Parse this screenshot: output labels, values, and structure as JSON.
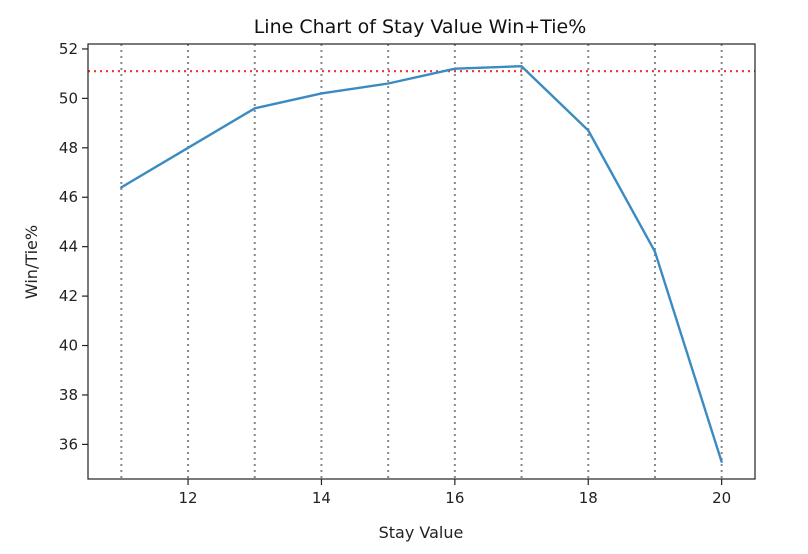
{
  "chart_data": {
    "type": "line",
    "title": "Line Chart of Stay Value Win+Tie%",
    "xlabel": "Stay Value",
    "ylabel": "Win/Tie%",
    "xlim": [
      10.5,
      20.5
    ],
    "ylim": [
      34.6,
      52.2
    ],
    "xticks": [
      12,
      14,
      16,
      18,
      20
    ],
    "yticks": [
      36,
      38,
      40,
      42,
      44,
      46,
      48,
      50,
      52
    ],
    "series": [
      {
        "x": [
          11,
          12,
          13,
          14,
          15,
          16,
          17,
          18,
          19,
          20
        ],
        "values": [
          46.4,
          48.0,
          49.6,
          50.2,
          50.6,
          51.2,
          51.3,
          48.7,
          43.8,
          35.3
        ],
        "color": "#3b8bc2"
      }
    ],
    "reference_line": {
      "y": 51.1,
      "color": "#ee3333",
      "style": "dotted"
    },
    "vertical_gridlines_x": [
      11,
      12,
      13,
      14,
      15,
      16,
      17,
      18,
      19,
      20
    ],
    "grid_color": "#888888",
    "legend": "none"
  }
}
